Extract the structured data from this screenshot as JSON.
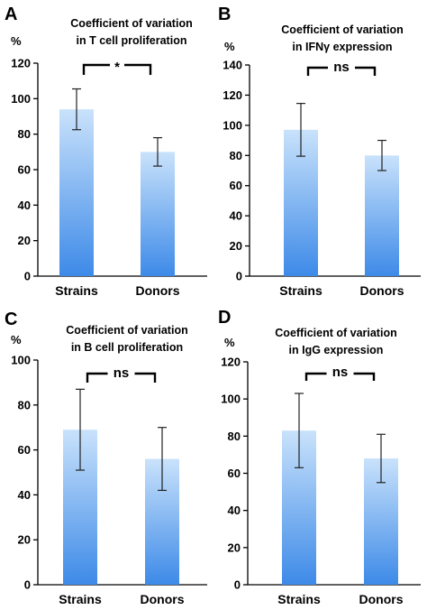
{
  "chart_data": [
    {
      "panel": "A",
      "type": "bar",
      "title": [
        "Coefficient of variation",
        "in T cell proliferation"
      ],
      "ylabel": "%",
      "ylim": [
        0,
        120
      ],
      "yticks": [
        0,
        20,
        40,
        60,
        80,
        100,
        120
      ],
      "categories": [
        "Strains",
        "Donors"
      ],
      "values": [
        94,
        70
      ],
      "errors": [
        11.5,
        8
      ],
      "significance": "*",
      "grid": false,
      "legend": "none"
    },
    {
      "panel": "B",
      "type": "bar",
      "title": [
        "Coefficient of variation",
        "in IFNγ expression"
      ],
      "ylabel": "%",
      "ylim": [
        0,
        140
      ],
      "yticks": [
        0,
        20,
        40,
        60,
        80,
        100,
        120,
        140
      ],
      "categories": [
        "Strains",
        "Donors"
      ],
      "values": [
        97,
        80
      ],
      "errors": [
        17.5,
        10
      ],
      "significance": "ns",
      "grid": false,
      "legend": "none"
    },
    {
      "panel": "C",
      "type": "bar",
      "title": [
        "Coefficient of variation",
        "in B cell proliferation"
      ],
      "ylabel": "%",
      "ylim": [
        0,
        100
      ],
      "yticks": [
        0,
        20,
        40,
        60,
        80,
        100
      ],
      "categories": [
        "Strains",
        "Donors"
      ],
      "values": [
        69,
        56
      ],
      "errors": [
        18,
        14
      ],
      "significance": "ns",
      "grid": false,
      "legend": "none"
    },
    {
      "panel": "D",
      "type": "bar",
      "title": [
        "Coefficient of variation",
        "in IgG expression"
      ],
      "ylabel": "%",
      "ylim": [
        0,
        120
      ],
      "yticks": [
        0,
        20,
        40,
        60,
        80,
        100,
        120
      ],
      "categories": [
        "Strains",
        "Donors"
      ],
      "values": [
        83,
        68
      ],
      "errors": [
        20,
        13
      ],
      "significance": "ns",
      "grid": false,
      "legend": "none"
    }
  ],
  "colors": {
    "bar_top": "#c9e2fb",
    "bar_bottom": "#3d8ae8",
    "axis": "#000000"
  }
}
